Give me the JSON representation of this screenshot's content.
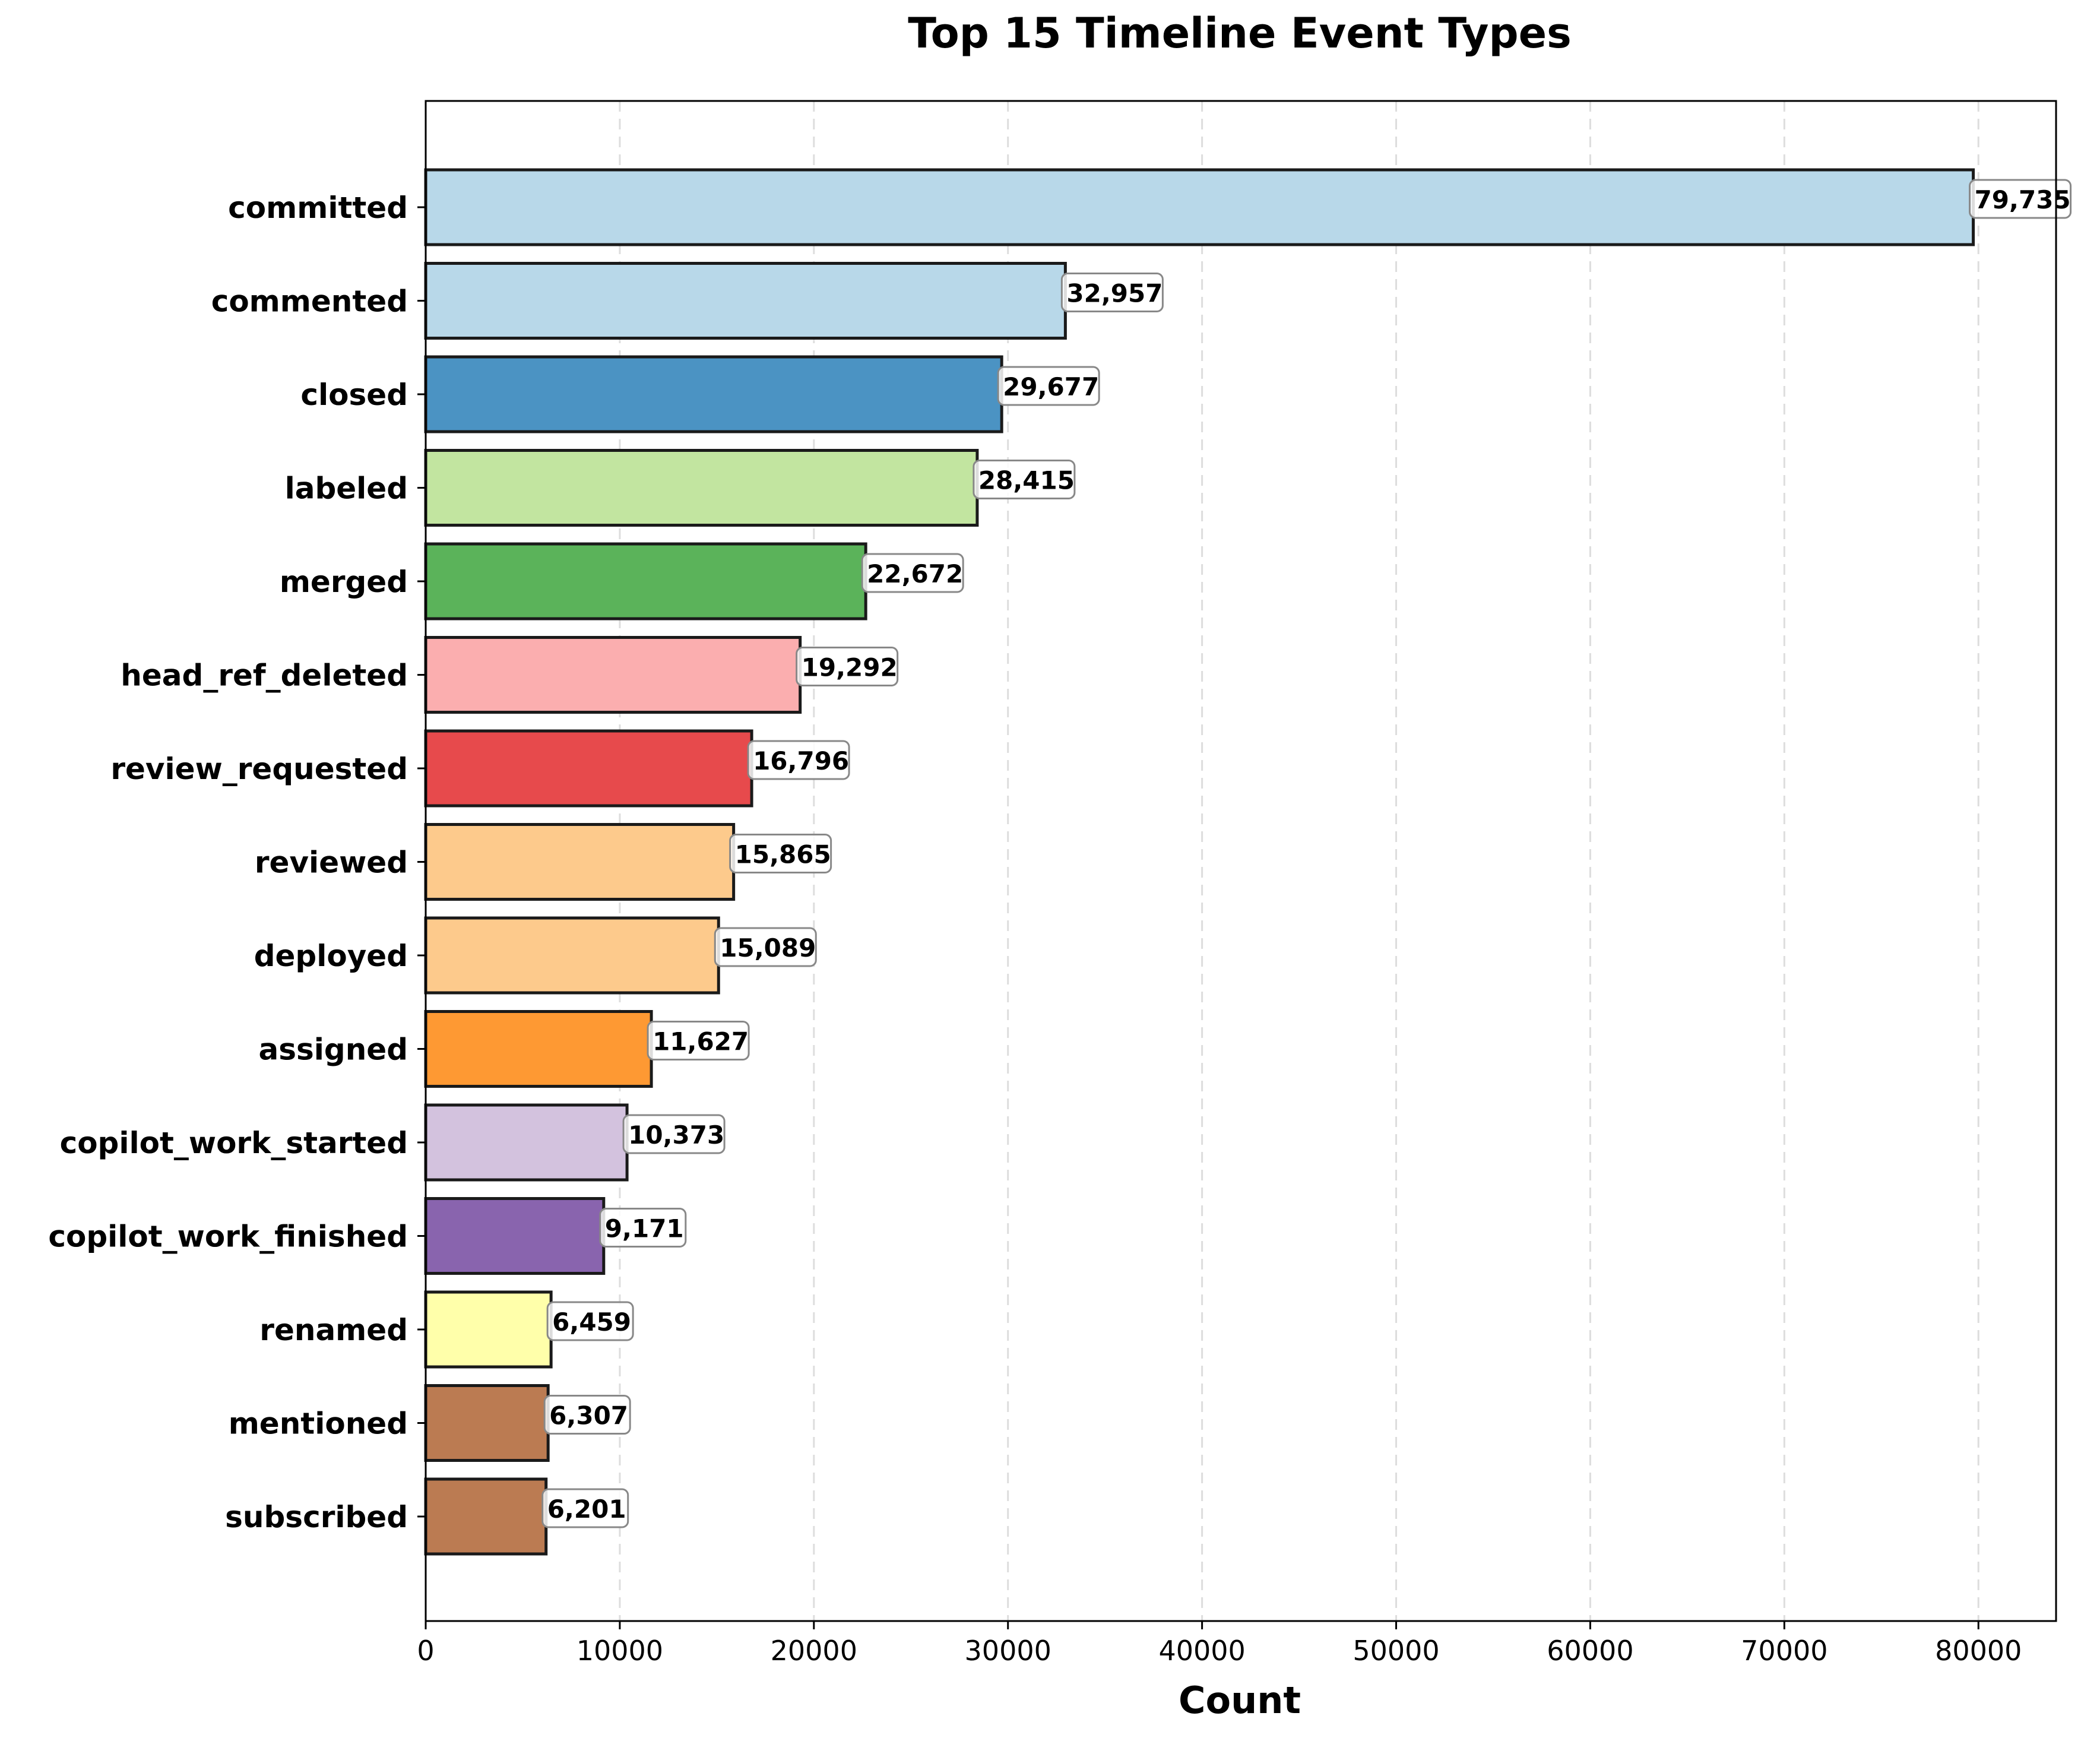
{
  "chart_data": {
    "type": "bar",
    "orientation": "horizontal",
    "title": "Top 15 Timeline Event Types",
    "xlabel": "Count",
    "ylabel": "",
    "xlim": [
      0,
      84000
    ],
    "xticks": [
      0,
      10000,
      20000,
      30000,
      40000,
      50000,
      60000,
      70000,
      80000
    ],
    "grid": "vertical dashed",
    "categories": [
      "committed",
      "commented",
      "closed",
      "labeled",
      "merged",
      "head_ref_deleted",
      "review_requested",
      "reviewed",
      "deployed",
      "assigned",
      "copilot_work_started",
      "copilot_work_finished",
      "renamed",
      "mentioned",
      "subscribed"
    ],
    "values": [
      79735,
      32957,
      29677,
      28415,
      22672,
      19292,
      16796,
      15865,
      15089,
      11627,
      10373,
      9171,
      6459,
      6307,
      6201
    ],
    "value_labels": [
      "79,735",
      "32,957",
      "29,677",
      "28,415",
      "22,672",
      "19,292",
      "16,796",
      "15,865",
      "15,089",
      "11,627",
      "10,373",
      "9,171",
      "6,459",
      "6,307",
      "6,201"
    ],
    "colors": [
      "#b8d8e9",
      "#b8d8e9",
      "#4b93c3",
      "#c2e5a0",
      "#5bb35a",
      "#fbaeaf",
      "#e74a4c",
      "#fdca8c",
      "#fdca8c",
      "#fe9933",
      "#d3c2de",
      "#8964ae",
      "#ffffaa",
      "#bb7b52",
      "#bb7b52"
    ]
  }
}
